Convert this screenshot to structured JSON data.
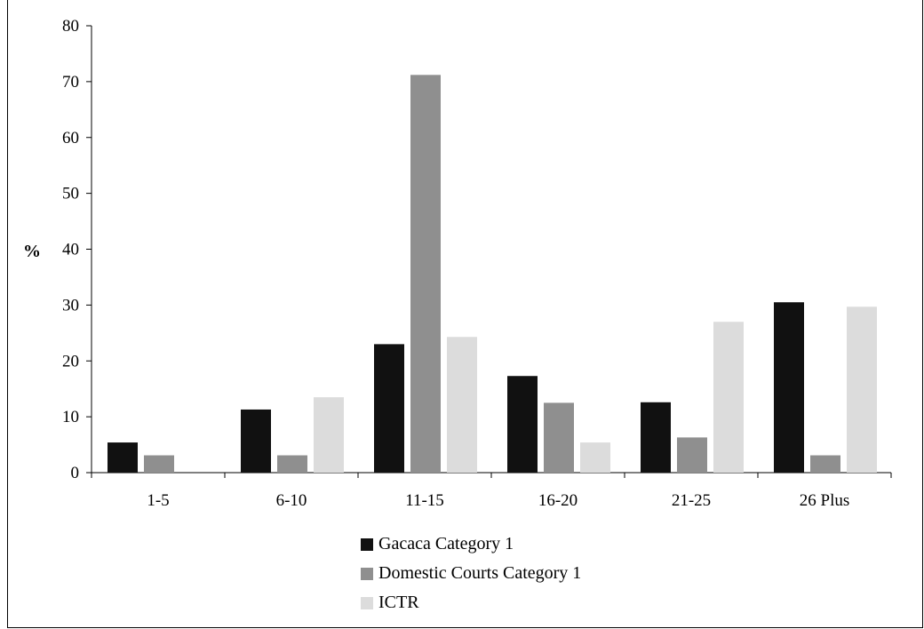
{
  "chart_data": {
    "type": "bar",
    "categories": [
      "1-5",
      "6-10",
      "11-15",
      "16-20",
      "21-25",
      "26 Plus"
    ],
    "series": [
      {
        "name": "Gacaca Category 1",
        "color": "#111111",
        "values": [
          5.4,
          11.3,
          23.0,
          17.3,
          12.6,
          30.5
        ]
      },
      {
        "name": "Domestic Courts Category 1",
        "color": "#8f8f8f",
        "values": [
          3.1,
          3.1,
          71.2,
          12.5,
          6.3,
          3.1
        ]
      },
      {
        "name": "ICTR",
        "color": "#dcdcdc",
        "values": [
          0,
          13.5,
          24.3,
          5.4,
          27.0,
          29.7
        ]
      }
    ],
    "ylabel": "%",
    "ylim": [
      0,
      80
    ],
    "yticks": [
      "0",
      "10",
      "20",
      "30",
      "40",
      "50",
      "60",
      "70",
      "80"
    ],
    "grid": false,
    "legend_position": "bottom"
  }
}
